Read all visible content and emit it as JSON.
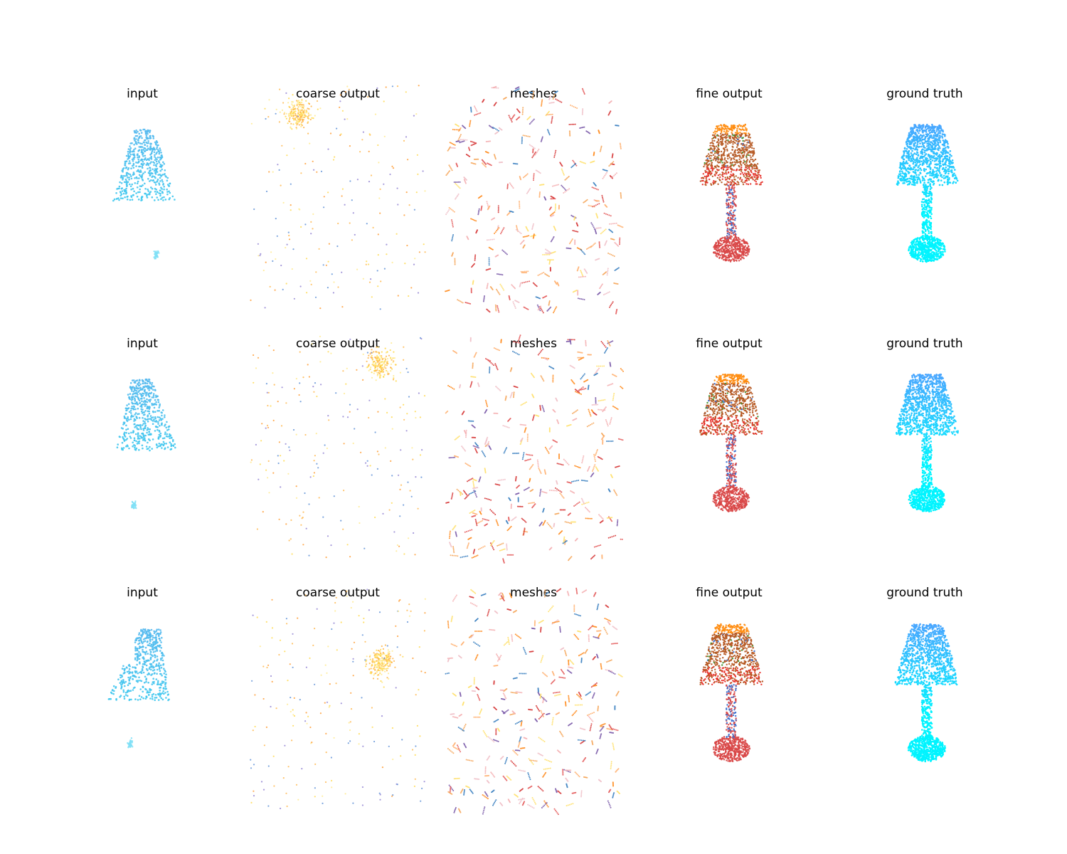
{
  "figure": {
    "panel_titles": [
      "input",
      "coarse output",
      "meshes",
      "fine output",
      "ground truth"
    ],
    "rows": 3
  },
  "colors": {
    "input": [
      "#3ec8ee",
      "#4cd0f0",
      "#56b9ee",
      "#7fe0f6"
    ],
    "coarse": [
      "#ff9a2e",
      "#ffb547",
      "#ffd84a",
      "#ffe98a",
      "#8f7fd1",
      "#5b8fd6"
    ],
    "meshes": [
      "#ff8a1c",
      "#f5a65b",
      "#f4b0b2",
      "#e35a5a",
      "#d63a3a",
      "#7a5aa8",
      "#3a7fc0",
      "#f0c0c8",
      "#ffb070",
      "#ffe06a"
    ],
    "fine_shade": "#b65a24",
    "fine_red": "#e8302a",
    "fine_orange": "#ff8c10",
    "fine_green": "#3e8f2a",
    "fine_blue": "#3a6fd0",
    "fine_base": "#d94848",
    "gt_top": "#4aa6ff",
    "gt_bottom": "#00f4ff"
  }
}
